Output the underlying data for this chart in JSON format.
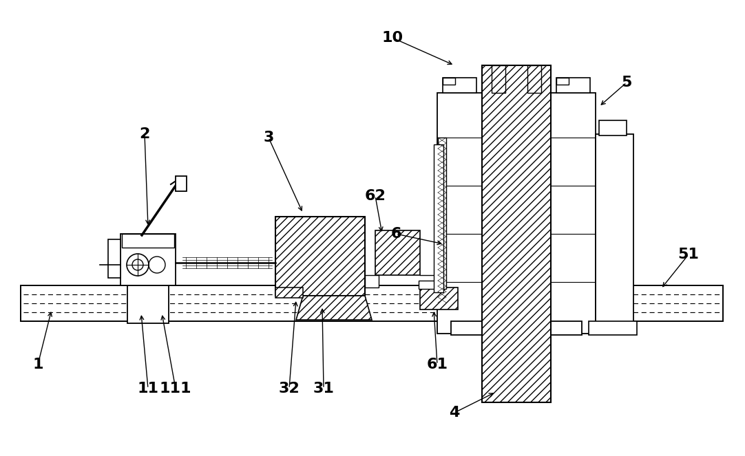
{
  "bg_color": "#ffffff",
  "line_color": "#000000",
  "label_fontsize": 16,
  "figsize": [
    10.82,
    6.63
  ],
  "dpi": 100,
  "labels_info": [
    [
      "1",
      55,
      530,
      75,
      450
    ],
    [
      "2",
      210,
      195,
      215,
      330
    ],
    [
      "3",
      390,
      200,
      440,
      310
    ],
    [
      "4",
      660,
      600,
      720,
      570
    ],
    [
      "5",
      910,
      120,
      870,
      155
    ],
    [
      "51",
      1000,
      370,
      960,
      420
    ],
    [
      "6",
      575,
      340,
      645,
      355
    ],
    [
      "62",
      545,
      285,
      555,
      340
    ],
    [
      "61",
      635,
      530,
      630,
      450
    ],
    [
      "10",
      570,
      55,
      660,
      95
    ],
    [
      "11",
      215,
      565,
      205,
      455
    ],
    [
      "111",
      255,
      565,
      235,
      455
    ],
    [
      "31",
      470,
      565,
      468,
      445
    ],
    [
      "32",
      420,
      565,
      430,
      435
    ]
  ]
}
